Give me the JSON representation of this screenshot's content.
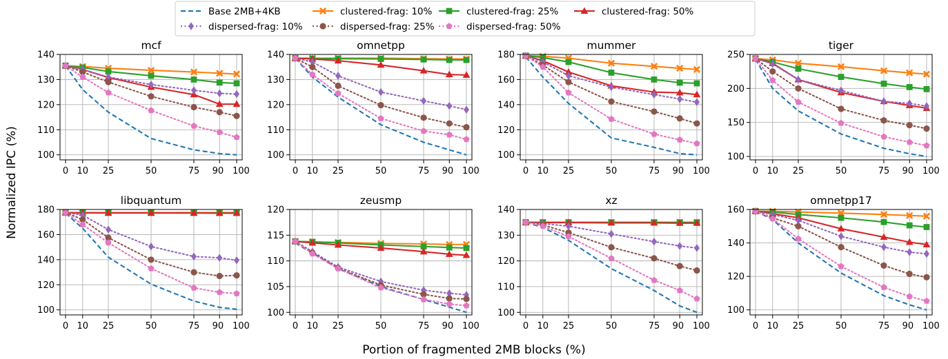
{
  "figure": {
    "ylabel": "Normalized IPC (%)",
    "xlabel": "Portion of fragmented 2MB blocks (%)"
  },
  "legend": {
    "placement": "top-center",
    "columns": 4
  },
  "series_styles": [
    {
      "name": "Base 2MB+4KB",
      "color": "#1f77b4",
      "dash": "dashed",
      "marker": "none"
    },
    {
      "name": "clustered-frag: 10%",
      "color": "#ff7f0e",
      "dash": "solid",
      "marker": "x"
    },
    {
      "name": "clustered-frag: 25%",
      "color": "#2ca02c",
      "dash": "solid",
      "marker": "square"
    },
    {
      "name": "clustered-frag: 50%",
      "color": "#d62728",
      "dash": "solid",
      "marker": "triangle"
    },
    {
      "name": "dispersed-frag: 10%",
      "color": "#9467bd",
      "dash": "dotted",
      "marker": "diamond"
    },
    {
      "name": "dispersed-frag: 25%",
      "color": "#8c564b",
      "dash": "dotted",
      "marker": "circle"
    },
    {
      "name": "dispersed-frag: 50%",
      "color": "#e377c2",
      "dash": "dotted",
      "marker": "pentagon"
    }
  ],
  "chart_data": [
    {
      "type": "line",
      "title": "mcf",
      "x": [
        0,
        10,
        25,
        50,
        75,
        90,
        100
      ],
      "xticks": [
        "0",
        "10",
        "25",
        "50",
        "75",
        "90",
        "100"
      ],
      "ylim": [
        98,
        140
      ],
      "yticks": [
        100,
        110,
        120,
        130,
        140
      ],
      "grid": true,
      "series": [
        {
          "name": "Base 2MB+4KB",
          "values": [
            135.5,
            126,
            117,
            106.5,
            102,
            100.5,
            100
          ]
        },
        {
          "name": "clustered-frag: 10%",
          "values": [
            135.5,
            135.2,
            134.5,
            133.7,
            133,
            132.5,
            132.2
          ]
        },
        {
          "name": "clustered-frag: 25%",
          "values": [
            135.5,
            134.8,
            133.2,
            131.5,
            130,
            128.8,
            128.5
          ]
        },
        {
          "name": "clustered-frag: 50%",
          "values": [
            135.5,
            134,
            130.8,
            127,
            124,
            120.2,
            120.2
          ]
        },
        {
          "name": "dispersed-frag: 10%",
          "values": [
            135.5,
            134,
            131,
            128,
            125.7,
            124.5,
            124.2
          ]
        },
        {
          "name": "dispersed-frag: 25%",
          "values": [
            135.5,
            133,
            129,
            123.3,
            119,
            117,
            115.5
          ]
        },
        {
          "name": "dispersed-frag: 50%",
          "values": [
            135.5,
            131,
            124.8,
            117.7,
            111.5,
            109,
            107
          ]
        }
      ]
    },
    {
      "type": "line",
      "title": "omnetpp",
      "x": [
        0,
        10,
        25,
        50,
        75,
        90,
        100
      ],
      "xticks": [
        "0",
        "10",
        "25",
        "50",
        "75",
        "90",
        "100"
      ],
      "ylim": [
        98,
        140
      ],
      "yticks": [
        100,
        110,
        120,
        130,
        140
      ],
      "grid": true,
      "series": [
        {
          "name": "Base 2MB+4KB",
          "values": [
            138.5,
            131,
            123,
            112,
            105,
            102,
            100
          ]
        },
        {
          "name": "clustered-frag: 10%",
          "values": [
            138.5,
            138.5,
            138.5,
            138.5,
            138.3,
            138.2,
            138.2
          ]
        },
        {
          "name": "clustered-frag: 25%",
          "values": [
            138.5,
            138.3,
            138.3,
            138.2,
            138,
            137.8,
            137.8
          ]
        },
        {
          "name": "clustered-frag: 50%",
          "values": [
            138.5,
            138.2,
            137.5,
            135.8,
            133.5,
            132,
            131.8
          ]
        },
        {
          "name": "dispersed-frag: 10%",
          "values": [
            138.5,
            137,
            131.5,
            125,
            121.5,
            119.5,
            118
          ]
        },
        {
          "name": "dispersed-frag: 25%",
          "values": [
            138.5,
            135,
            127.5,
            119.8,
            114.8,
            112.5,
            111
          ]
        },
        {
          "name": "dispersed-frag: 50%",
          "values": [
            138.5,
            132,
            124.5,
            114.5,
            109.5,
            108,
            106.2
          ]
        }
      ]
    },
    {
      "type": "line",
      "title": "mummer",
      "x": [
        0,
        10,
        25,
        50,
        75,
        90,
        100
      ],
      "xticks": [
        "0",
        "10",
        "25",
        "50",
        "75",
        "90",
        "100"
      ],
      "ylim": [
        96,
        180
      ],
      "yticks": [
        100,
        120,
        140,
        160,
        180
      ],
      "grid": true,
      "series": [
        {
          "name": "Base 2MB+4KB",
          "values": [
            178,
            162,
            141,
            113.5,
            106,
            101,
            100
          ]
        },
        {
          "name": "clustered-frag: 10%",
          "values": [
            179,
            178.5,
            177,
            173,
            170.5,
            169,
            168
          ]
        },
        {
          "name": "clustered-frag: 25%",
          "values": [
            179,
            177.5,
            174,
            165.5,
            160,
            157.5,
            157
          ]
        },
        {
          "name": "clustered-frag: 50%",
          "values": [
            179,
            175,
            166,
            155,
            150,
            149.5,
            148
          ]
        },
        {
          "name": "dispersed-frag: 10%",
          "values": [
            179,
            174,
            163,
            154,
            148,
            144.5,
            142
          ]
        },
        {
          "name": "dispersed-frag: 25%",
          "values": [
            179,
            171.5,
            158,
            142.5,
            134.5,
            129,
            125
          ]
        },
        {
          "name": "dispersed-frag: 50%",
          "values": [
            179,
            170,
            149.5,
            128.5,
            116.5,
            112,
            109
          ]
        }
      ]
    },
    {
      "type": "line",
      "title": "tiger",
      "x": [
        0,
        10,
        25,
        50,
        75,
        90,
        100
      ],
      "xticks": [
        "0",
        "10",
        "25",
        "50",
        "75",
        "90",
        "100"
      ],
      "ylim": [
        95,
        250
      ],
      "yticks": [
        100,
        150,
        200,
        250
      ],
      "grid": true,
      "series": [
        {
          "name": "Base 2MB+4KB",
          "values": [
            243,
            200,
            167,
            133,
            112,
            104,
            100
          ]
        },
        {
          "name": "clustered-frag: 10%",
          "values": [
            244,
            242,
            237,
            232,
            226,
            223,
            221
          ]
        },
        {
          "name": "clustered-frag: 25%",
          "values": [
            244,
            239,
            229,
            217,
            207,
            202,
            199
          ]
        },
        {
          "name": "clustered-frag: 50%",
          "values": [
            244,
            237,
            213,
            194,
            181,
            175,
            171
          ]
        },
        {
          "name": "dispersed-frag: 10%",
          "values": [
            244,
            236,
            213,
            197,
            181,
            178,
            174
          ]
        },
        {
          "name": "dispersed-frag: 25%",
          "values": [
            244,
            225,
            200,
            170,
            153,
            146,
            141
          ]
        },
        {
          "name": "dispersed-frag: 50%",
          "values": [
            244,
            212,
            180,
            149,
            129,
            121,
            116
          ]
        }
      ]
    },
    {
      "type": "line",
      "title": "libquantum",
      "x": [
        0,
        10,
        25,
        50,
        75,
        90,
        100
      ],
      "xticks": [
        "0",
        "10",
        "25",
        "50",
        "75",
        "90",
        "100"
      ],
      "ylim": [
        96,
        180
      ],
      "yticks": [
        100,
        120,
        140,
        160,
        180
      ],
      "grid": true,
      "series": [
        {
          "name": "Base 2MB+4KB",
          "values": [
            177,
            165,
            142,
            120.5,
            107,
            102,
            100.5
          ]
        },
        {
          "name": "clustered-frag: 10%",
          "values": [
            177.5,
            177.5,
            177.5,
            177.5,
            177.5,
            177.5,
            177.5
          ]
        },
        {
          "name": "clustered-frag: 25%",
          "values": [
            177.5,
            177.4,
            177.3,
            177.3,
            177.2,
            177.2,
            177.2
          ]
        },
        {
          "name": "clustered-frag: 50%",
          "values": [
            177.5,
            177.3,
            177.2,
            177.2,
            177.2,
            177.1,
            177.1
          ]
        },
        {
          "name": "dispersed-frag: 10%",
          "values": [
            177.5,
            175.5,
            164,
            150.5,
            142.5,
            141.5,
            139.5
          ]
        },
        {
          "name": "dispersed-frag: 25%",
          "values": [
            177.5,
            172,
            157.5,
            140,
            130,
            127,
            127.5
          ]
        },
        {
          "name": "dispersed-frag: 50%",
          "values": [
            177.5,
            168,
            153.5,
            133,
            117.5,
            114,
            113
          ]
        }
      ]
    },
    {
      "type": "line",
      "title": "zeusmp",
      "x": [
        0,
        10,
        25,
        50,
        75,
        90,
        100
      ],
      "xticks": [
        "0",
        "10",
        "25",
        "50",
        "75",
        "90",
        "100"
      ],
      "ylim": [
        99.5,
        120
      ],
      "yticks": [
        100,
        105,
        110,
        115,
        120
      ],
      "grid": true,
      "series": [
        {
          "name": "Base 2MB+4KB",
          "values": [
            113.5,
            111.5,
            108.5,
            105,
            102.5,
            101,
            100
          ]
        },
        {
          "name": "clustered-frag: 10%",
          "values": [
            113.8,
            113.7,
            113.6,
            113.4,
            113.3,
            113.2,
            113.2
          ]
        },
        {
          "name": "clustered-frag: 25%",
          "values": [
            113.8,
            113.7,
            113.5,
            113.1,
            112.8,
            112.6,
            112.5
          ]
        },
        {
          "name": "clustered-frag: 50%",
          "values": [
            113.8,
            113.5,
            113.1,
            112.5,
            111.8,
            111.3,
            111.1
          ]
        },
        {
          "name": "dispersed-frag: 10%",
          "values": [
            113.8,
            111.8,
            108.8,
            106,
            104.3,
            103.7,
            103.4
          ]
        },
        {
          "name": "dispersed-frag: 25%",
          "values": [
            113.8,
            111.6,
            108.6,
            105.3,
            103.5,
            102.7,
            102.6
          ]
        },
        {
          "name": "dispersed-frag: 50%",
          "values": [
            113.8,
            111.4,
            108.5,
            104.8,
            102.5,
            101.6,
            101.3
          ]
        }
      ]
    },
    {
      "type": "line",
      "title": "xz",
      "x": [
        0,
        10,
        25,
        50,
        75,
        90,
        100
      ],
      "xticks": [
        "0",
        "10",
        "25",
        "50",
        "75",
        "90",
        "100"
      ],
      "ylim": [
        99,
        140
      ],
      "yticks": [
        100,
        110,
        120,
        130,
        140
      ],
      "grid": true,
      "series": [
        {
          "name": "Base 2MB+4KB",
          "values": [
            135,
            133,
            128,
            117,
            108.5,
            102.5,
            100
          ]
        },
        {
          "name": "clustered-frag: 10%",
          "values": [
            135,
            135,
            135,
            135,
            135,
            135,
            135
          ]
        },
        {
          "name": "clustered-frag: 25%",
          "values": [
            135,
            135,
            135,
            135,
            135,
            135,
            135
          ]
        },
        {
          "name": "clustered-frag: 50%",
          "values": [
            135,
            134.9,
            134.9,
            134.8,
            134.8,
            134.7,
            134.7
          ]
        },
        {
          "name": "dispersed-frag: 10%",
          "values": [
            135,
            134.5,
            133.5,
            130.5,
            127.5,
            125.8,
            125
          ]
        },
        {
          "name": "dispersed-frag: 25%",
          "values": [
            135,
            134,
            131,
            125.3,
            121,
            118,
            116.3
          ]
        },
        {
          "name": "dispersed-frag: 50%",
          "values": [
            135,
            133.5,
            129.5,
            121,
            112.5,
            108.5,
            105.3
          ]
        }
      ]
    },
    {
      "type": "line",
      "title": "omnetpp17",
      "x": [
        0,
        10,
        25,
        50,
        75,
        90,
        100
      ],
      "xticks": [
        "0",
        "10",
        "25",
        "50",
        "75",
        "90",
        "100"
      ],
      "ylim": [
        97,
        160
      ],
      "yticks": [
        100,
        120,
        140,
        160
      ],
      "grid": true,
      "series": [
        {
          "name": "Base 2MB+4KB",
          "values": [
            159,
            154,
            140,
            122,
            108.5,
            103,
            100
          ]
        },
        {
          "name": "clustered-frag: 10%",
          "values": [
            159,
            158.9,
            158.5,
            157.8,
            157,
            156.4,
            156
          ]
        },
        {
          "name": "clustered-frag: 25%",
          "values": [
            159,
            158.5,
            157,
            155,
            152.5,
            150.5,
            149.5
          ]
        },
        {
          "name": "clustered-frag: 50%",
          "values": [
            159,
            157.5,
            155,
            148.5,
            143.5,
            140.5,
            139
          ]
        },
        {
          "name": "dispersed-frag: 10%",
          "values": [
            159,
            157,
            153.5,
            144,
            137.5,
            134.5,
            133.5
          ]
        },
        {
          "name": "dispersed-frag: 25%",
          "values": [
            159,
            155,
            150,
            137.5,
            126.5,
            121.5,
            119.5
          ]
        },
        {
          "name": "dispersed-frag: 50%",
          "values": [
            159,
            154.5,
            142.5,
            126,
            113.5,
            108,
            105.3
          ]
        }
      ]
    }
  ]
}
